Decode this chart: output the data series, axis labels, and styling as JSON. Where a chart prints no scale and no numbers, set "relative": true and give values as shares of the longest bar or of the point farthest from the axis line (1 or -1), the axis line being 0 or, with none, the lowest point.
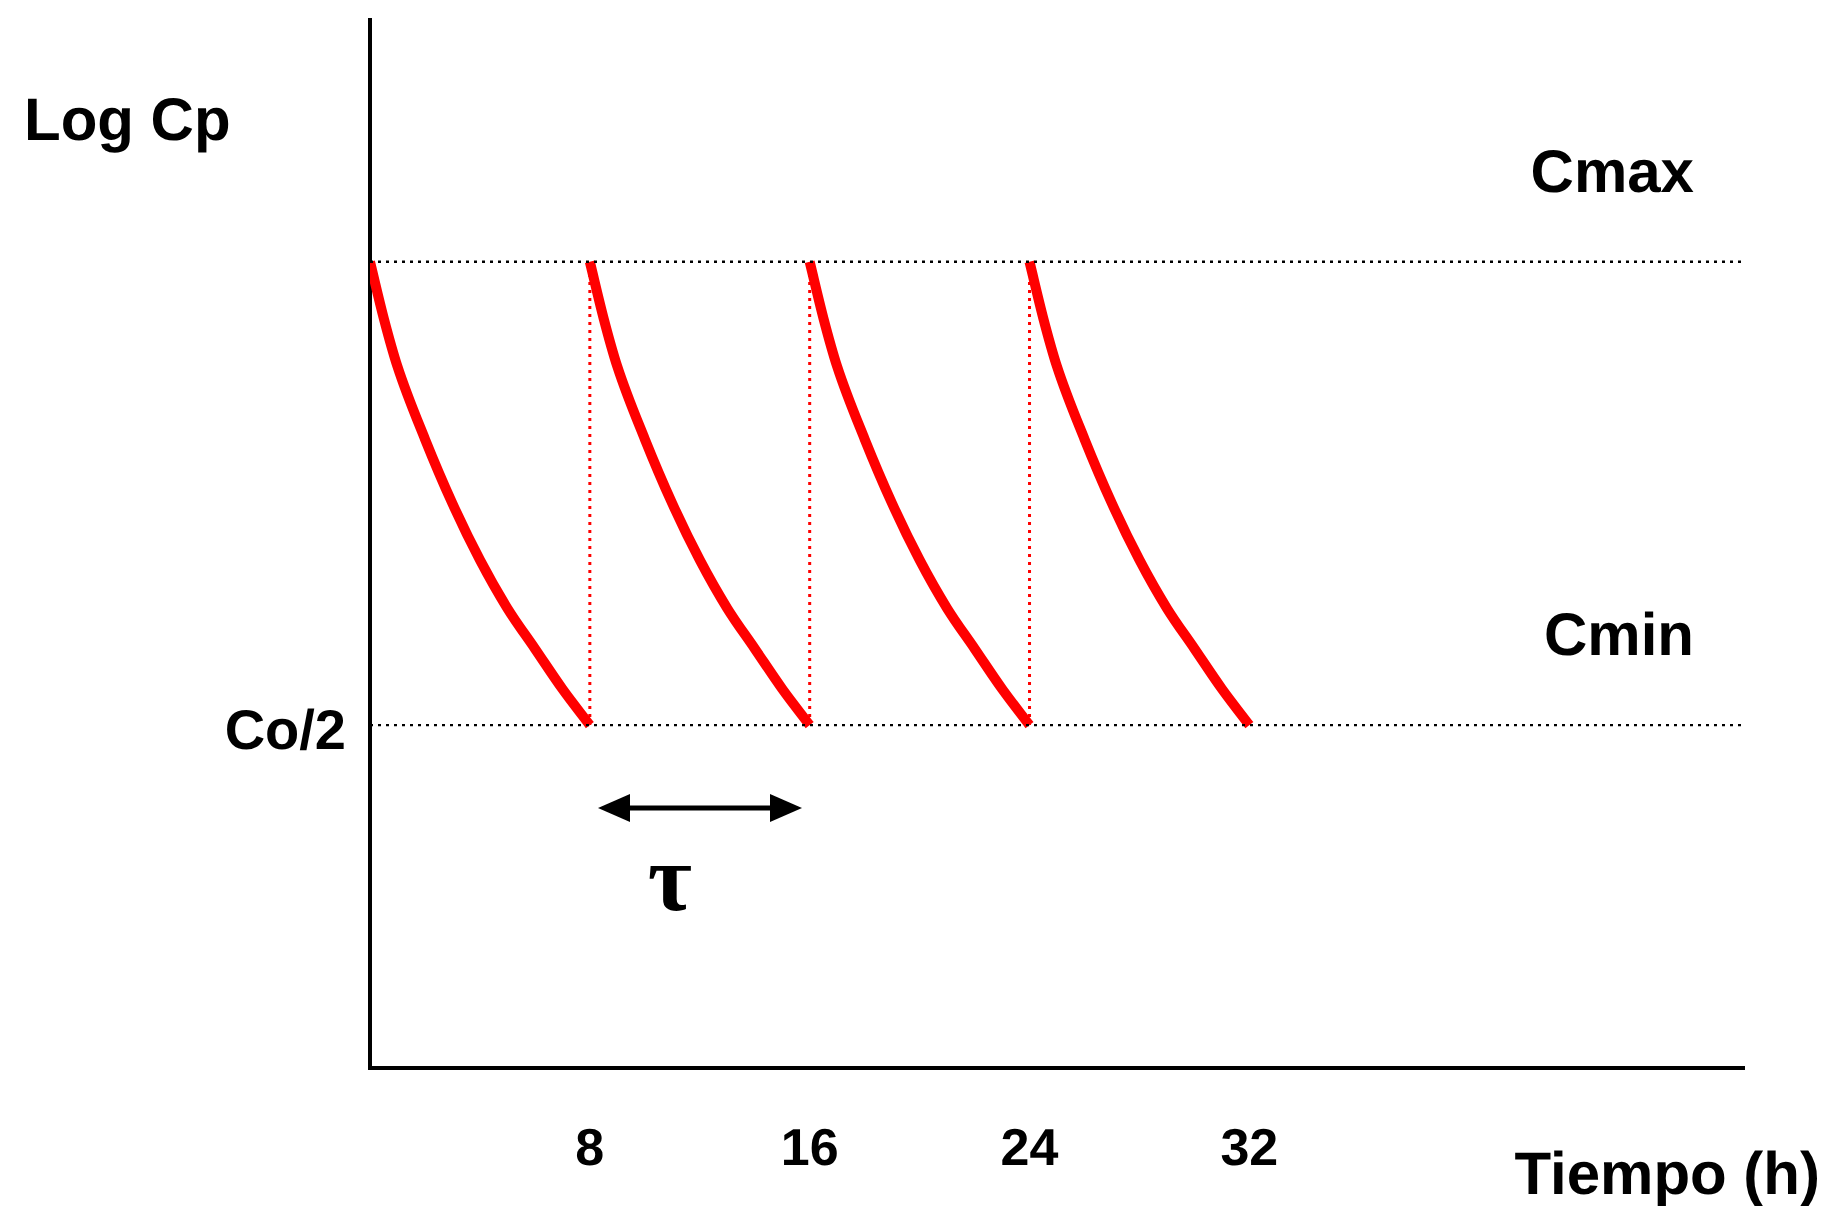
{
  "chart_data": {
    "type": "line",
    "relative": true,
    "xlabel": "Tiempo (h)",
    "ylabel": "Log Cp",
    "xlim": [
      0,
      50
    ],
    "xticks": [
      8,
      16,
      24,
      32
    ],
    "legend": false,
    "marker": "none",
    "series": [
      {
        "color": "#ff0000",
        "x": [
          0,
          0.5,
          1,
          2,
          3,
          4,
          5,
          6,
          7,
          8
        ],
        "values": [
          1,
          0.93,
          0.87,
          0.78,
          0.7,
          0.63,
          0.57,
          0.52,
          0.47,
          0.425
        ]
      },
      {
        "color": "#ff0000",
        "x": [
          8,
          8.5,
          9,
          10,
          11,
          12,
          13,
          14,
          15,
          16
        ],
        "values": [
          1,
          0.93,
          0.87,
          0.78,
          0.7,
          0.63,
          0.57,
          0.52,
          0.47,
          0.425
        ]
      },
      {
        "color": "#ff0000",
        "x": [
          16,
          16.5,
          17,
          18,
          19,
          20,
          21,
          22,
          23,
          24
        ],
        "values": [
          1,
          0.93,
          0.87,
          0.78,
          0.7,
          0.63,
          0.57,
          0.52,
          0.47,
          0.425
        ]
      },
      {
        "color": "#ff0000",
        "x": [
          24,
          24.5,
          25,
          26,
          27,
          28,
          29,
          30,
          31,
          32
        ],
        "values": [
          1,
          0.93,
          0.87,
          0.78,
          0.7,
          0.63,
          0.57,
          0.52,
          0.47,
          0.425
        ]
      },
      {
        "color": "#ff0000",
        "line_style": "dotted",
        "x": [
          8,
          8
        ],
        "values": [
          0.425,
          1
        ]
      },
      {
        "color": "#ff0000",
        "line_style": "dotted",
        "x": [
          16,
          16
        ],
        "values": [
          0.425,
          1
        ]
      },
      {
        "color": "#ff0000",
        "line_style": "dotted",
        "x": [
          24,
          24
        ],
        "values": [
          0.425,
          1
        ]
      }
    ],
    "ref_lines": [
      {
        "axis": "y",
        "value": 1,
        "label": "Cmax",
        "color": "#000000",
        "line_style": "dotted"
      },
      {
        "axis": "y",
        "value": 0.425,
        "label": "Cmin",
        "color": "#000000",
        "line_style": "dotted"
      }
    ],
    "annotations": [
      "Co/2",
      "τ"
    ]
  }
}
